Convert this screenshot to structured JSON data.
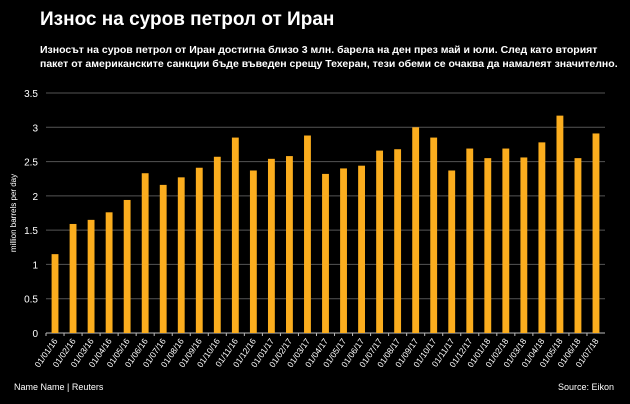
{
  "title": "Износ на суров петрол от Иран",
  "subtitle": "Износът на суров петрол от Иран достигна близо 3 млн. барела на ден през май и юли. След като вторият пакет от американските санкции бъде въведен срещу Техеран, тези обеми се очаква да намалеят значително.",
  "footer": {
    "credit": "Name Name | Reuters",
    "source": "Source: Eikon"
  },
  "chart_data": {
    "type": "bar",
    "title": "Износ на суров петрол от Иран",
    "xlabel": "",
    "ylabel": "million barrels per day",
    "ylim": [
      0,
      3.5
    ],
    "yticks": [
      "0",
      "0.5",
      "1",
      "1.5",
      "2",
      "2.5",
      "3",
      "3.5"
    ],
    "grid": true,
    "bar_color": "#fbad1e",
    "categories": [
      "01/01/16",
      "01/02/16",
      "01/03/16",
      "01/04/16",
      "01/05/16",
      "01/06/16",
      "01/07/16",
      "01/08/16",
      "01/09/16",
      "01/10/16",
      "01/11/16",
      "01/12/16",
      "01/01/17",
      "01/02/17",
      "01/03/17",
      "01/04/17",
      "01/05/17",
      "01/06/17",
      "01/07/17",
      "01/08/17",
      "01/09/17",
      "01/10/17",
      "01/11/17",
      "01/12/17",
      "01/01/18",
      "01/02/18",
      "01/03/18",
      "01/04/18",
      "01/05/18",
      "01/06/18",
      "01/07/18"
    ],
    "values": [
      1.15,
      1.59,
      1.65,
      1.76,
      1.94,
      2.33,
      2.16,
      2.27,
      2.41,
      2.57,
      2.85,
      2.37,
      2.54,
      2.58,
      2.88,
      2.32,
      2.4,
      2.44,
      2.66,
      2.68,
      3.0,
      2.85,
      2.37,
      2.69,
      2.55,
      2.69,
      2.56,
      2.78,
      3.17,
      2.55,
      2.91
    ]
  }
}
